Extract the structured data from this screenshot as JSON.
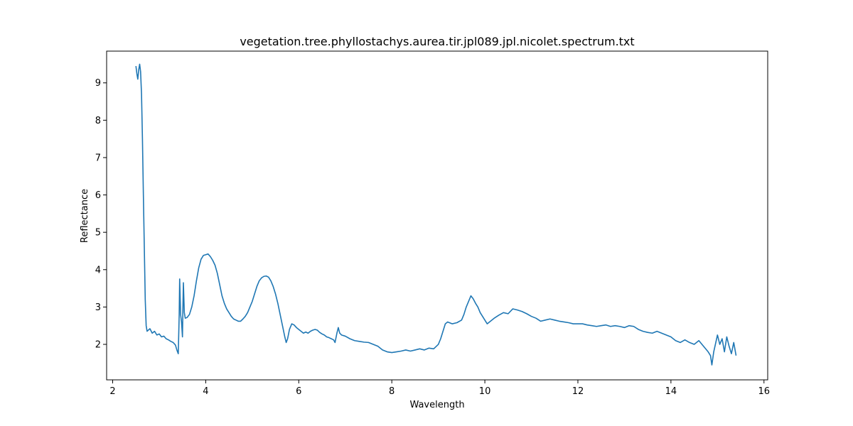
{
  "chart_data": {
    "type": "line",
    "title": "vegetation.tree.phyllostachys.aurea.tir.jpl089.jpl.nicolet.spectrum.txt",
    "xlabel": "Wavelength",
    "ylabel": "Reflectance",
    "xlim": [
      1.87,
      16.08
    ],
    "ylim": [
      1.05,
      9.85
    ],
    "xticks": [
      2,
      4,
      6,
      8,
      10,
      12,
      14,
      16
    ],
    "yticks": [
      2,
      3,
      4,
      5,
      6,
      7,
      8,
      9
    ],
    "grid": false,
    "legend": "none",
    "series": [
      {
        "color": "#1f77b4",
        "points": [
          [
            2.5,
            9.45
          ],
          [
            2.52,
            9.25
          ],
          [
            2.54,
            9.1
          ],
          [
            2.56,
            9.35
          ],
          [
            2.58,
            9.5
          ],
          [
            2.6,
            9.3
          ],
          [
            2.62,
            8.7
          ],
          [
            2.64,
            7.5
          ],
          [
            2.66,
            6.0
          ],
          [
            2.68,
            4.6
          ],
          [
            2.7,
            3.2
          ],
          [
            2.72,
            2.5
          ],
          [
            2.74,
            2.35
          ],
          [
            2.8,
            2.42
          ],
          [
            2.85,
            2.3
          ],
          [
            2.9,
            2.35
          ],
          [
            2.95,
            2.25
          ],
          [
            3.0,
            2.28
          ],
          [
            3.05,
            2.2
          ],
          [
            3.1,
            2.22
          ],
          [
            3.15,
            2.15
          ],
          [
            3.2,
            2.12
          ],
          [
            3.25,
            2.08
          ],
          [
            3.3,
            2.05
          ],
          [
            3.35,
            1.98
          ],
          [
            3.38,
            1.85
          ],
          [
            3.41,
            1.75
          ],
          [
            3.43,
            2.8
          ],
          [
            3.44,
            3.75
          ],
          [
            3.46,
            2.8
          ],
          [
            3.48,
            2.6
          ],
          [
            3.5,
            2.2
          ],
          [
            3.51,
            3.0
          ],
          [
            3.52,
            3.65
          ],
          [
            3.54,
            2.85
          ],
          [
            3.56,
            2.7
          ],
          [
            3.6,
            2.72
          ],
          [
            3.65,
            2.8
          ],
          [
            3.7,
            3.0
          ],
          [
            3.75,
            3.3
          ],
          [
            3.8,
            3.7
          ],
          [
            3.85,
            4.05
          ],
          [
            3.9,
            4.28
          ],
          [
            3.95,
            4.38
          ],
          [
            4.0,
            4.4
          ],
          [
            4.05,
            4.42
          ],
          [
            4.1,
            4.35
          ],
          [
            4.15,
            4.25
          ],
          [
            4.2,
            4.12
          ],
          [
            4.25,
            3.9
          ],
          [
            4.3,
            3.6
          ],
          [
            4.35,
            3.3
          ],
          [
            4.4,
            3.1
          ],
          [
            4.45,
            2.95
          ],
          [
            4.5,
            2.85
          ],
          [
            4.55,
            2.75
          ],
          [
            4.6,
            2.68
          ],
          [
            4.65,
            2.65
          ],
          [
            4.7,
            2.62
          ],
          [
            4.75,
            2.62
          ],
          [
            4.8,
            2.68
          ],
          [
            4.85,
            2.75
          ],
          [
            4.9,
            2.85
          ],
          [
            4.95,
            3.0
          ],
          [
            5.0,
            3.15
          ],
          [
            5.05,
            3.35
          ],
          [
            5.1,
            3.55
          ],
          [
            5.15,
            3.7
          ],
          [
            5.2,
            3.78
          ],
          [
            5.25,
            3.82
          ],
          [
            5.3,
            3.83
          ],
          [
            5.35,
            3.8
          ],
          [
            5.4,
            3.7
          ],
          [
            5.45,
            3.55
          ],
          [
            5.5,
            3.35
          ],
          [
            5.55,
            3.1
          ],
          [
            5.6,
            2.8
          ],
          [
            5.65,
            2.5
          ],
          [
            5.7,
            2.2
          ],
          [
            5.73,
            2.05
          ],
          [
            5.76,
            2.15
          ],
          [
            5.8,
            2.4
          ],
          [
            5.85,
            2.55
          ],
          [
            5.9,
            2.52
          ],
          [
            5.95,
            2.45
          ],
          [
            6.0,
            2.4
          ],
          [
            6.05,
            2.35
          ],
          [
            6.1,
            2.3
          ],
          [
            6.15,
            2.33
          ],
          [
            6.2,
            2.3
          ],
          [
            6.25,
            2.35
          ],
          [
            6.3,
            2.38
          ],
          [
            6.35,
            2.4
          ],
          [
            6.4,
            2.38
          ],
          [
            6.45,
            2.32
          ],
          [
            6.5,
            2.28
          ],
          [
            6.55,
            2.25
          ],
          [
            6.6,
            2.2
          ],
          [
            6.65,
            2.18
          ],
          [
            6.7,
            2.15
          ],
          [
            6.75,
            2.12
          ],
          [
            6.78,
            2.05
          ],
          [
            6.82,
            2.3
          ],
          [
            6.85,
            2.45
          ],
          [
            6.88,
            2.3
          ],
          [
            6.92,
            2.25
          ],
          [
            7.0,
            2.22
          ],
          [
            7.1,
            2.15
          ],
          [
            7.2,
            2.1
          ],
          [
            7.3,
            2.08
          ],
          [
            7.4,
            2.06
          ],
          [
            7.5,
            2.05
          ],
          [
            7.6,
            2.0
          ],
          [
            7.7,
            1.95
          ],
          [
            7.8,
            1.85
          ],
          [
            7.9,
            1.8
          ],
          [
            8.0,
            1.78
          ],
          [
            8.1,
            1.8
          ],
          [
            8.2,
            1.82
          ],
          [
            8.3,
            1.85
          ],
          [
            8.4,
            1.82
          ],
          [
            8.5,
            1.85
          ],
          [
            8.6,
            1.88
          ],
          [
            8.7,
            1.85
          ],
          [
            8.8,
            1.9
          ],
          [
            8.9,
            1.88
          ],
          [
            9.0,
            2.0
          ],
          [
            9.05,
            2.15
          ],
          [
            9.1,
            2.35
          ],
          [
            9.15,
            2.55
          ],
          [
            9.2,
            2.6
          ],
          [
            9.3,
            2.55
          ],
          [
            9.4,
            2.58
          ],
          [
            9.5,
            2.65
          ],
          [
            9.55,
            2.8
          ],
          [
            9.6,
            3.0
          ],
          [
            9.65,
            3.15
          ],
          [
            9.7,
            3.3
          ],
          [
            9.75,
            3.22
          ],
          [
            9.8,
            3.1
          ],
          [
            9.85,
            3.0
          ],
          [
            9.9,
            2.85
          ],
          [
            9.95,
            2.75
          ],
          [
            10.0,
            2.65
          ],
          [
            10.05,
            2.55
          ],
          [
            10.1,
            2.6
          ],
          [
            10.2,
            2.7
          ],
          [
            10.3,
            2.78
          ],
          [
            10.4,
            2.85
          ],
          [
            10.5,
            2.82
          ],
          [
            10.6,
            2.95
          ],
          [
            10.7,
            2.92
          ],
          [
            10.8,
            2.88
          ],
          [
            10.9,
            2.82
          ],
          [
            11.0,
            2.75
          ],
          [
            11.1,
            2.7
          ],
          [
            11.2,
            2.62
          ],
          [
            11.3,
            2.65
          ],
          [
            11.4,
            2.68
          ],
          [
            11.5,
            2.65
          ],
          [
            11.6,
            2.62
          ],
          [
            11.7,
            2.6
          ],
          [
            11.8,
            2.58
          ],
          [
            11.9,
            2.55
          ],
          [
            12.0,
            2.55
          ],
          [
            12.1,
            2.55
          ],
          [
            12.2,
            2.52
          ],
          [
            12.3,
            2.5
          ],
          [
            12.4,
            2.48
          ],
          [
            12.5,
            2.5
          ],
          [
            12.6,
            2.52
          ],
          [
            12.7,
            2.48
          ],
          [
            12.8,
            2.5
          ],
          [
            12.9,
            2.48
          ],
          [
            13.0,
            2.45
          ],
          [
            13.1,
            2.5
          ],
          [
            13.2,
            2.48
          ],
          [
            13.3,
            2.4
          ],
          [
            13.4,
            2.35
          ],
          [
            13.5,
            2.32
          ],
          [
            13.6,
            2.3
          ],
          [
            13.7,
            2.35
          ],
          [
            13.8,
            2.3
          ],
          [
            13.9,
            2.25
          ],
          [
            14.0,
            2.2
          ],
          [
            14.1,
            2.1
          ],
          [
            14.2,
            2.05
          ],
          [
            14.3,
            2.12
          ],
          [
            14.4,
            2.05
          ],
          [
            14.5,
            2.0
          ],
          [
            14.6,
            2.1
          ],
          [
            14.7,
            1.95
          ],
          [
            14.8,
            1.8
          ],
          [
            14.85,
            1.7
          ],
          [
            14.88,
            1.45
          ],
          [
            14.92,
            1.8
          ],
          [
            15.0,
            2.25
          ],
          [
            15.05,
            2.0
          ],
          [
            15.1,
            2.15
          ],
          [
            15.15,
            1.8
          ],
          [
            15.2,
            2.2
          ],
          [
            15.25,
            1.95
          ],
          [
            15.3,
            1.75
          ],
          [
            15.35,
            2.05
          ],
          [
            15.4,
            1.7
          ]
        ]
      }
    ]
  }
}
